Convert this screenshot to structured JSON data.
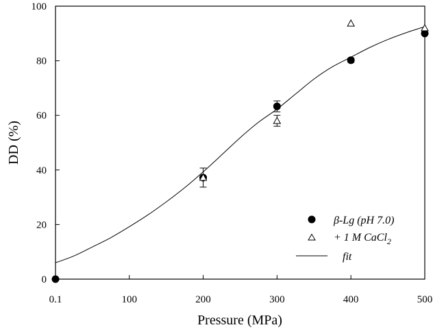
{
  "chart_data": {
    "type": "scatter",
    "xlabel": "Pressure (MPa)",
    "ylabel": "DD (%)",
    "xlim": [
      0.1,
      500
    ],
    "ylim": [
      0,
      100
    ],
    "xticks": [
      0.1,
      100,
      200,
      300,
      400,
      500
    ],
    "xtick_labels": [
      "0.1",
      "100",
      "200",
      "300",
      "400",
      "500"
    ],
    "yticks": [
      0,
      20,
      40,
      60,
      80,
      100
    ],
    "ytick_labels": [
      "0",
      "20",
      "40",
      "60",
      "80",
      "100"
    ],
    "series": [
      {
        "name": "β-Lg (pH 7.0)",
        "legend_parts": [
          "β-Lg (pH 7.0)"
        ],
        "marker": "filled-circle",
        "color": "#000000",
        "points": [
          {
            "x": 0.1,
            "y": 0,
            "err": 0
          },
          {
            "x": 200,
            "y": 37.2,
            "err": 0
          },
          {
            "x": 300,
            "y": 63.3,
            "err": 2.0
          },
          {
            "x": 400,
            "y": 80.2,
            "err": 0.8
          },
          {
            "x": 500,
            "y": 90.0,
            "err": 0
          }
        ]
      },
      {
        "name": "+ 1 M CaCl2",
        "legend_parts": [
          "+ 1 M CaCl",
          "2"
        ],
        "marker": "open-triangle",
        "color": "#000000",
        "points": [
          {
            "x": 200,
            "y": 37.2,
            "err": 3.5
          },
          {
            "x": 300,
            "y": 58.0,
            "err": 2.0
          },
          {
            "x": 400,
            "y": 93.7,
            "err": 0
          },
          {
            "x": 500,
            "y": 92.0,
            "err": 0
          }
        ]
      },
      {
        "name": "fit",
        "legend_parts": [
          "fit"
        ],
        "type": "line",
        "color": "#000000",
        "points": [
          {
            "x": 0.1,
            "y": 6.0
          },
          {
            "x": 25,
            "y": 8.5
          },
          {
            "x": 50,
            "y": 11.8
          },
          {
            "x": 75,
            "y": 15.2
          },
          {
            "x": 100,
            "y": 19.2
          },
          {
            "x": 125,
            "y": 23.5
          },
          {
            "x": 150,
            "y": 28.3
          },
          {
            "x": 175,
            "y": 33.5
          },
          {
            "x": 200,
            "y": 39.3
          },
          {
            "x": 225,
            "y": 45.5
          },
          {
            "x": 250,
            "y": 51.8
          },
          {
            "x": 275,
            "y": 57.5
          },
          {
            "x": 300,
            "y": 62.3
          },
          {
            "x": 325,
            "y": 67.8
          },
          {
            "x": 350,
            "y": 73.3
          },
          {
            "x": 375,
            "y": 77.8
          },
          {
            "x": 400,
            "y": 81.3
          },
          {
            "x": 425,
            "y": 84.8
          },
          {
            "x": 450,
            "y": 87.8
          },
          {
            "x": 475,
            "y": 90.3
          },
          {
            "x": 500,
            "y": 92.5
          }
        ]
      }
    ],
    "legend_position": "bottom-right"
  }
}
